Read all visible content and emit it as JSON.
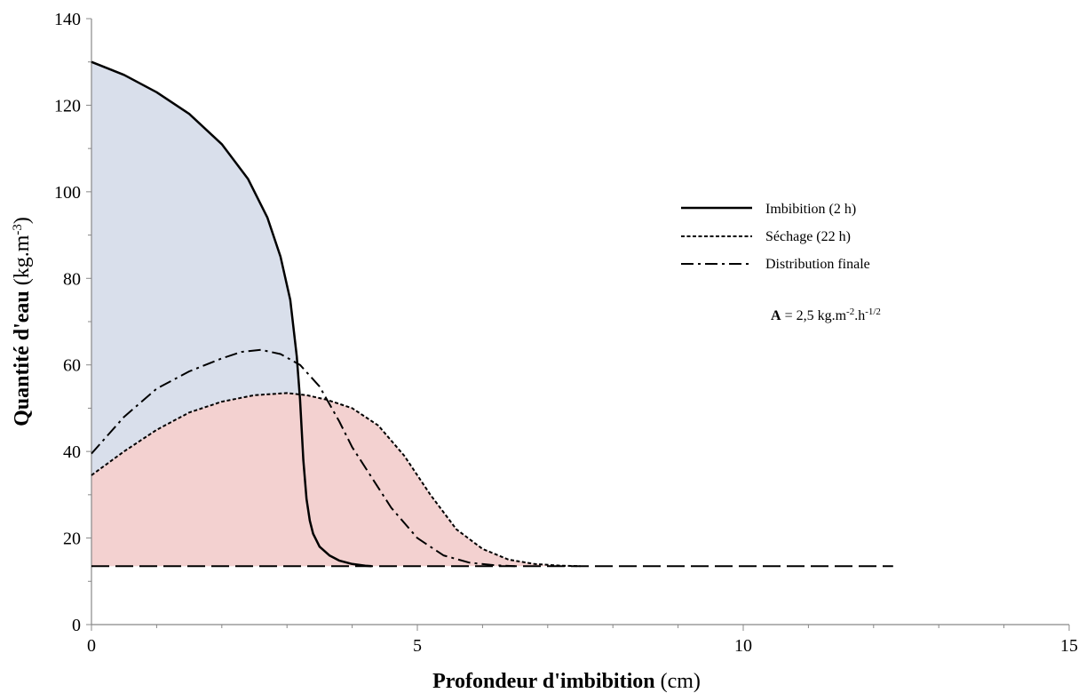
{
  "chart_data": {
    "type": "line",
    "title": "",
    "xlabel_bold": "Profondeur d'imbibition",
    "xlabel_unit": "(cm)",
    "ylabel_bold": "Quantité d'eau",
    "ylabel_unit_base": "(kg.m",
    "ylabel_unit_sup": "-3",
    "ylabel_unit_end": ")",
    "xlim": [
      0,
      15
    ],
    "ylim": [
      0,
      140
    ],
    "x_ticks": [
      0,
      5,
      10,
      15
    ],
    "y_ticks": [
      0,
      20,
      40,
      60,
      80,
      100,
      120,
      140
    ],
    "grid": false,
    "legend_position": "right",
    "series": [
      {
        "name": "Imbibition (2 h)",
        "style": "solid",
        "fill": "#d9dfeb",
        "x": [
          0,
          0.5,
          1.0,
          1.5,
          2.0,
          2.4,
          2.7,
          2.9,
          3.05,
          3.15,
          3.2,
          3.25,
          3.3,
          3.35,
          3.4,
          3.5,
          3.65,
          3.8,
          4.0,
          4.2,
          4.3
        ],
        "values": [
          130,
          127,
          123,
          118,
          111,
          103,
          94,
          85,
          75,
          62,
          52,
          38,
          29,
          24,
          21,
          18,
          16,
          14.8,
          14,
          13.6,
          13.5
        ]
      },
      {
        "name": "Séchage (22 h)",
        "style": "dashed",
        "fill": "#f3d1d0",
        "x": [
          0,
          0.5,
          1.0,
          1.5,
          2.0,
          2.5,
          3.0,
          3.3,
          3.6,
          4.0,
          4.4,
          4.8,
          5.2,
          5.6,
          6.0,
          6.4,
          6.8,
          7.2,
          7.5
        ],
        "values": [
          34.5,
          40,
          45,
          49,
          51.5,
          53,
          53.5,
          53,
          52,
          50,
          46,
          39,
          30,
          22,
          17.5,
          15,
          14,
          13.6,
          13.5
        ]
      },
      {
        "name": "Distribution finale",
        "style": "dashdot",
        "x": [
          0,
          0.5,
          1.0,
          1.5,
          2.0,
          2.3,
          2.6,
          2.9,
          3.2,
          3.5,
          3.8,
          4.0,
          4.3,
          4.6,
          5.0,
          5.4,
          5.8,
          6.2,
          6.5
        ],
        "values": [
          39.5,
          48,
          54.5,
          58.5,
          61.5,
          63,
          63.5,
          62.5,
          60,
          55,
          47,
          41,
          34,
          27,
          20,
          16,
          14.3,
          13.7,
          13.5
        ]
      },
      {
        "style": "longdash",
        "x": [
          0,
          12.3
        ],
        "values": [
          13.5,
          13.5
        ]
      }
    ],
    "annotation": {
      "bold": "A",
      "text_main": " = 2,5 kg.m",
      "sup1": "-2",
      "text_mid": ".h",
      "sup2": "-1/2"
    }
  }
}
